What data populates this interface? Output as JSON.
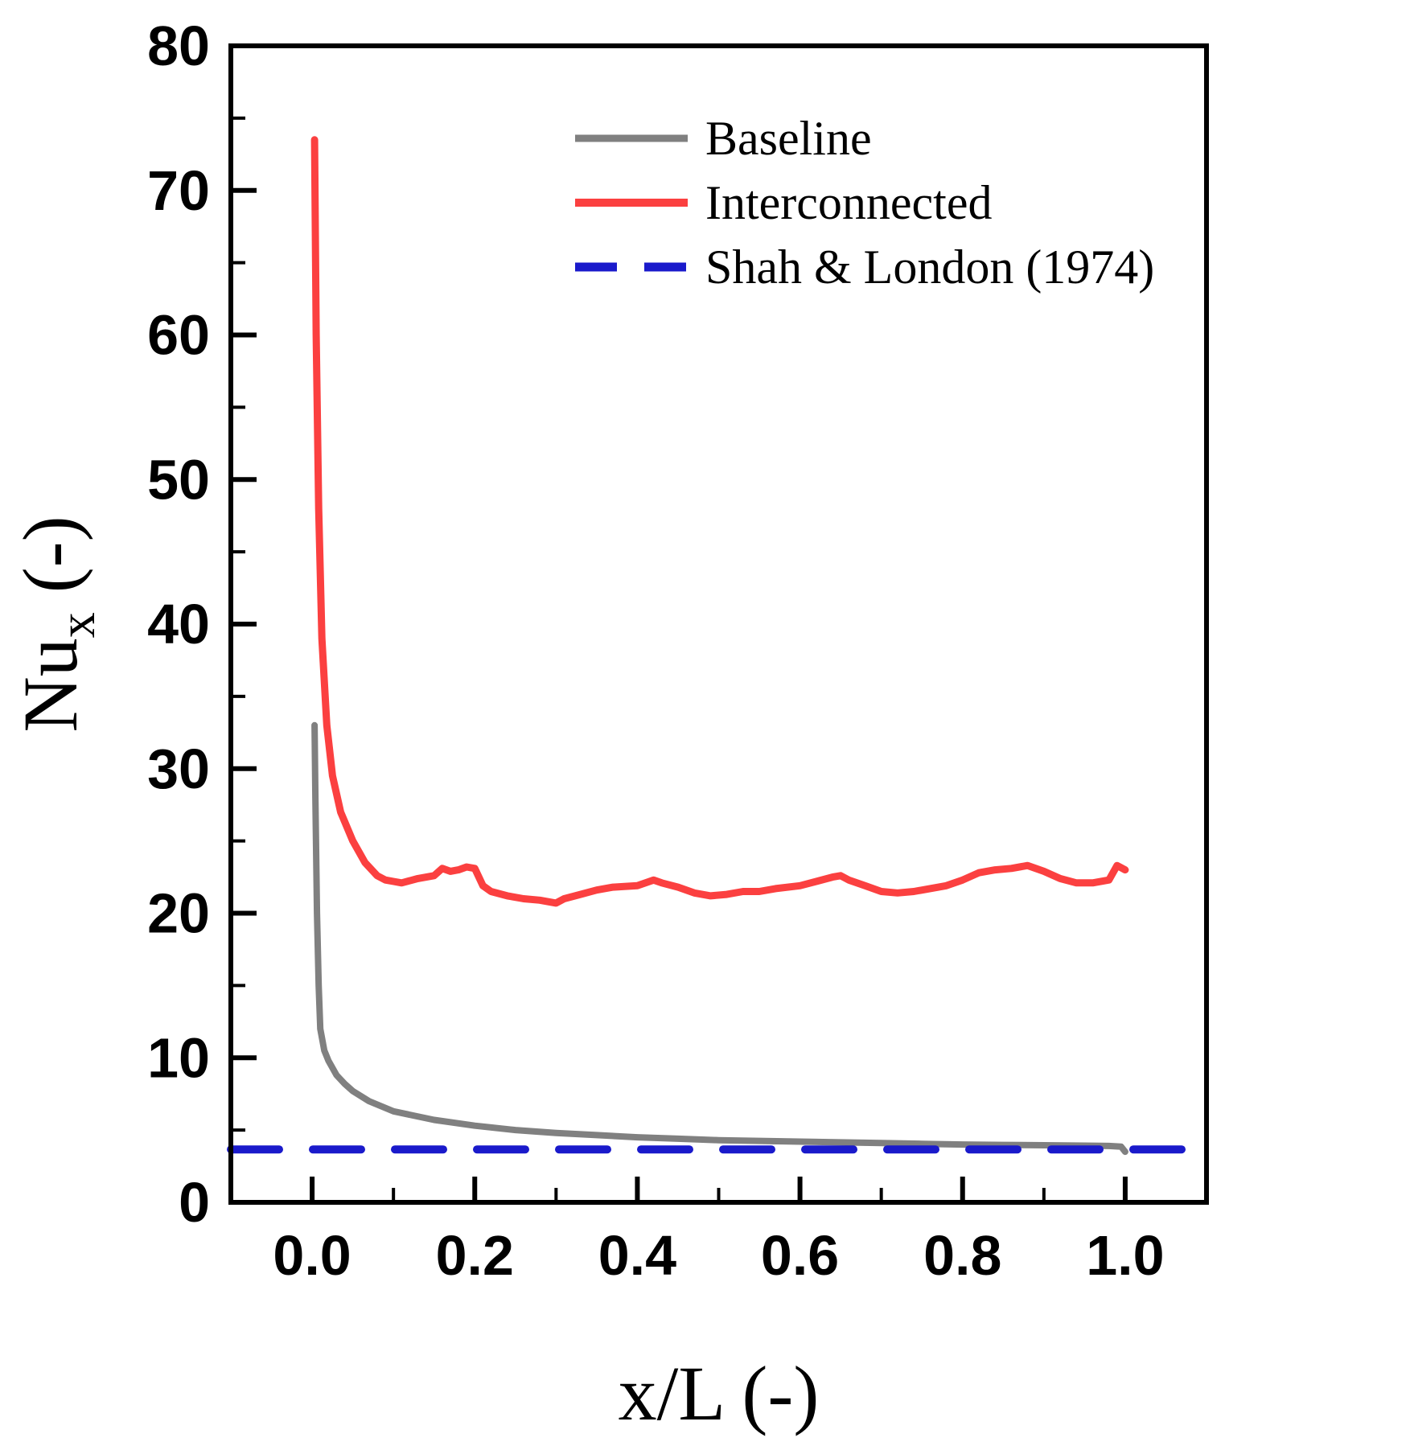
{
  "figure": {
    "background": "#ffffff",
    "frame_color": "#000000"
  },
  "chart_data": {
    "type": "line",
    "title": "",
    "xlabel": "x/L (-)",
    "ylabel_base": "Nu",
    "ylabel_sub": "x",
    "ylabel_suffix": " (-)",
    "xlim": [
      -0.1,
      1.1
    ],
    "ylim": [
      0,
      80
    ],
    "x_major_ticks": [
      0.0,
      0.2,
      0.4,
      0.6,
      0.8,
      1.0
    ],
    "x_tick_labels": [
      "0.0",
      "0.2",
      "0.4",
      "0.6",
      "0.8",
      "1.0"
    ],
    "x_minor_ticks": [
      -0.1,
      0.1,
      0.3,
      0.5,
      0.7,
      0.9,
      1.1
    ],
    "y_major_ticks": [
      0,
      10,
      20,
      30,
      40,
      50,
      60,
      70,
      80
    ],
    "y_tick_labels": [
      "0",
      "10",
      "20",
      "30",
      "40",
      "50",
      "60",
      "70",
      "80"
    ],
    "y_minor_ticks": [
      5,
      15,
      25,
      35,
      45,
      55,
      65,
      75
    ],
    "grid": false,
    "legend_position": "top-right-inside",
    "series": [
      {
        "name": "Baseline",
        "color": "#808080",
        "style": "solid",
        "width": 8,
        "x": [
          0.003,
          0.004,
          0.006,
          0.008,
          0.01,
          0.015,
          0.02,
          0.03,
          0.04,
          0.05,
          0.07,
          0.1,
          0.15,
          0.2,
          0.25,
          0.3,
          0.35,
          0.4,
          0.45,
          0.5,
          0.55,
          0.6,
          0.65,
          0.7,
          0.75,
          0.8,
          0.85,
          0.9,
          0.95,
          0.98,
          0.995,
          1.0
        ],
        "y": [
          33,
          28,
          20,
          15,
          12,
          10.5,
          9.8,
          8.8,
          8.2,
          7.7,
          7.0,
          6.3,
          5.7,
          5.3,
          5.0,
          4.8,
          4.65,
          4.5,
          4.4,
          4.3,
          4.25,
          4.2,
          4.15,
          4.1,
          4.05,
          4.0,
          3.97,
          3.95,
          3.92,
          3.9,
          3.85,
          3.5
        ]
      },
      {
        "name": "Interconnected",
        "color": "#fb4040",
        "style": "solid",
        "width": 9,
        "x": [
          0.003,
          0.005,
          0.008,
          0.012,
          0.018,
          0.025,
          0.035,
          0.05,
          0.065,
          0.08,
          0.09,
          0.1,
          0.11,
          0.13,
          0.15,
          0.16,
          0.17,
          0.18,
          0.19,
          0.2,
          0.21,
          0.22,
          0.24,
          0.26,
          0.28,
          0.3,
          0.31,
          0.33,
          0.35,
          0.37,
          0.4,
          0.41,
          0.42,
          0.43,
          0.45,
          0.47,
          0.49,
          0.51,
          0.53,
          0.55,
          0.57,
          0.6,
          0.62,
          0.64,
          0.65,
          0.66,
          0.68,
          0.7,
          0.72,
          0.74,
          0.76,
          0.78,
          0.8,
          0.82,
          0.84,
          0.86,
          0.88,
          0.9,
          0.92,
          0.94,
          0.96,
          0.98,
          0.99,
          1.0
        ],
        "y": [
          73.5,
          60,
          48,
          39,
          33,
          29.5,
          27,
          25,
          23.5,
          22.6,
          22.3,
          22.2,
          22.1,
          22.4,
          22.6,
          23.1,
          22.9,
          23.0,
          23.2,
          23.1,
          21.9,
          21.5,
          21.2,
          21.0,
          20.9,
          20.7,
          21.0,
          21.3,
          21.6,
          21.8,
          21.9,
          22.1,
          22.3,
          22.1,
          21.8,
          21.4,
          21.2,
          21.3,
          21.5,
          21.5,
          21.7,
          21.9,
          22.2,
          22.5,
          22.6,
          22.3,
          21.9,
          21.5,
          21.4,
          21.5,
          21.7,
          21.9,
          22.3,
          22.8,
          23.0,
          23.1,
          23.3,
          22.9,
          22.4,
          22.1,
          22.1,
          22.3,
          23.3,
          23.0
        ]
      },
      {
        "name": "Shah & London (1974)",
        "color": "#1a1acb",
        "style": "dashed",
        "width": 10,
        "value": 3.66,
        "x": [
          -0.1,
          1.1
        ],
        "y": [
          3.66,
          3.66
        ]
      }
    ]
  }
}
